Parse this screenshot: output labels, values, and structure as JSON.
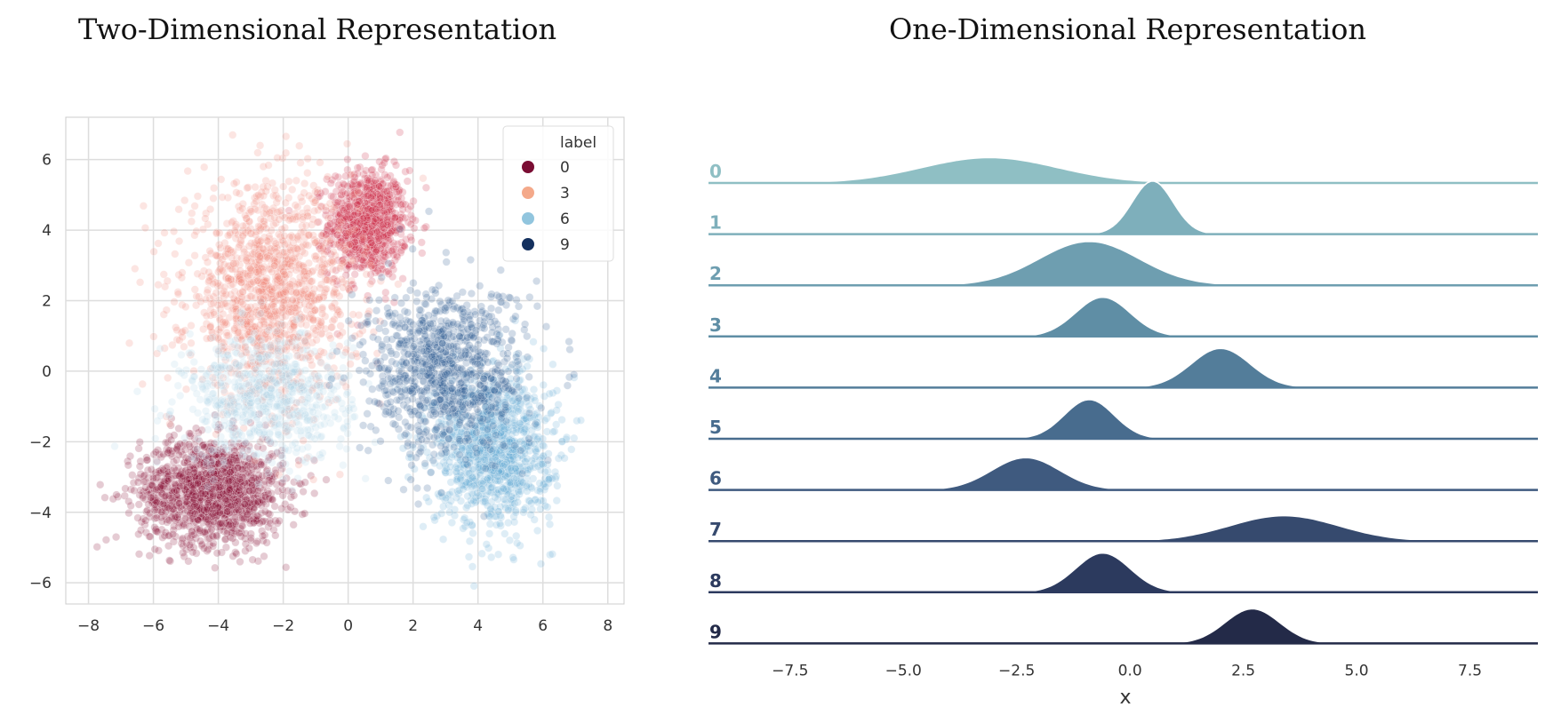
{
  "titles": {
    "left": "Two-Dimensional Representation",
    "right": "One-Dimensional Representation"
  },
  "chart_data": [
    {
      "type": "scatter",
      "title": "Two-Dimensional Representation",
      "xlabel": "",
      "ylabel": "",
      "xlim": [
        -8.7,
        8.5
      ],
      "ylim": [
        -6.6,
        7.2
      ],
      "xticks": [
        -8,
        -6,
        -4,
        -2,
        0,
        2,
        4,
        6,
        8
      ],
      "yticks": [
        -6,
        -4,
        -2,
        0,
        2,
        4,
        6
      ],
      "xtick_labels": [
        "−8",
        "−6",
        "−4",
        "−2",
        "0",
        "2",
        "4",
        "6",
        "8"
      ],
      "ytick_labels": [
        "−6",
        "−4",
        "−2",
        "0",
        "2",
        "4",
        "6"
      ],
      "grid": true,
      "legend": {
        "title": "label",
        "placement": "top-right",
        "entries": [
          {
            "label": "0",
            "color": "#7a0d33"
          },
          {
            "label": "3",
            "color": "#f4a98a"
          },
          {
            "label": "6",
            "color": "#91c5de"
          },
          {
            "label": "9",
            "color": "#14305e"
          }
        ]
      },
      "series": [
        {
          "name": "0",
          "color": "#a4122f",
          "clusters": [
            {
              "cx": 0.6,
              "cy": 4.2,
              "sx": 0.6,
              "sy": 0.75,
              "n": 900,
              "color": "#cf2c47"
            },
            {
              "cx": -4.2,
              "cy": -3.4,
              "sx": 1.1,
              "sy": 0.75,
              "n": 1400,
              "color": "#8a1038"
            }
          ]
        },
        {
          "name": "3",
          "color": "#f4a98a",
          "clusters": [
            {
              "cx": -2.4,
              "cy": 2.2,
              "sx": 1.3,
              "sy": 1.5,
              "n": 1300,
              "color": "#f08a7a"
            }
          ]
        },
        {
          "name": "6",
          "color": "#91c5de",
          "clusters": [
            {
              "cx": -2.5,
              "cy": -0.8,
              "sx": 1.3,
              "sy": 0.9,
              "n": 700,
              "color": "#b2d6e8"
            },
            {
              "cx": 4.5,
              "cy": -2.2,
              "sx": 0.9,
              "sy": 1.1,
              "n": 1100,
              "color": "#6aaed6"
            }
          ]
        },
        {
          "name": "9",
          "color": "#14305e",
          "clusters": [
            {
              "cx": 3.0,
              "cy": 0.0,
              "sx": 1.2,
              "sy": 1.2,
              "n": 1000,
              "color": "#2d5a93"
            }
          ]
        }
      ]
    },
    {
      "type": "area",
      "subtype": "ridgeline",
      "title": "One-Dimensional Representation",
      "xlabel": "x",
      "xlim": [
        -9.3,
        9.0
      ],
      "xticks": [
        -7.5,
        -5.0,
        -2.5,
        0,
        2.5,
        5.0,
        7.5
      ],
      "xtick_labels": [
        "−7.5",
        "−5.0",
        "−2.5",
        "0.0",
        "2.5",
        "5.0",
        "7.5"
      ],
      "series": [
        {
          "name": "0",
          "color": "#8fbfc4",
          "peaks": [
            {
              "mu": -3.1,
              "sigma": 1.5,
              "h": 0.55
            }
          ]
        },
        {
          "name": "1",
          "color": "#7eafbb",
          "peaks": [
            {
              "mu": 0.5,
              "sigma": 0.45,
              "h": 1.15
            }
          ]
        },
        {
          "name": "2",
          "color": "#6e9eb0",
          "peaks": [
            {
              "mu": -0.9,
              "sigma": 1.1,
              "h": 0.95
            }
          ]
        },
        {
          "name": "3",
          "color": "#5f8ea5",
          "peaks": [
            {
              "mu": -0.6,
              "sigma": 0.6,
              "h": 0.85
            }
          ]
        },
        {
          "name": "4",
          "color": "#537d9a",
          "peaks": [
            {
              "mu": 2.0,
              "sigma": 0.65,
              "h": 0.85
            }
          ]
        },
        {
          "name": "5",
          "color": "#486c8e",
          "peaks": [
            {
              "mu": -0.9,
              "sigma": 0.55,
              "h": 0.85
            }
          ]
        },
        {
          "name": "6",
          "color": "#3f5a7f",
          "peaks": [
            {
              "mu": -2.3,
              "sigma": 0.75,
              "h": 0.7
            }
          ]
        },
        {
          "name": "7",
          "color": "#364a6e",
          "peaks": [
            {
              "mu": 3.4,
              "sigma": 1.2,
              "h": 0.55
            }
          ]
        },
        {
          "name": "8",
          "color": "#2c3a5e",
          "peaks": [
            {
              "mu": -0.6,
              "sigma": 0.6,
              "h": 0.85
            }
          ]
        },
        {
          "name": "9",
          "color": "#232a48",
          "peaks": [
            {
              "mu": 2.7,
              "sigma": 0.6,
              "h": 0.75
            }
          ]
        }
      ]
    }
  ]
}
